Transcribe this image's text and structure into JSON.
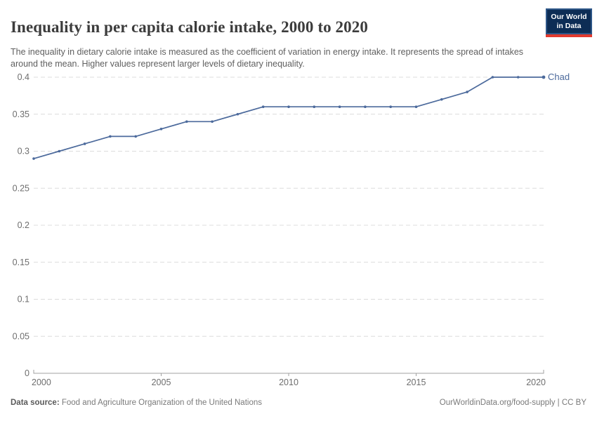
{
  "header": {
    "title": "Inequality in per capita calorie intake, 2000 to 2020",
    "subtitle": "The inequality in dietary calorie intake is measured as the coefficient of variation in energy intake. It represents the spread of intakes around the mean. Higher values represent larger levels of dietary inequality.",
    "logo": {
      "line1": "Our World",
      "line2": "in Data"
    }
  },
  "chart_data": {
    "type": "line",
    "title": "Inequality in per capita calorie intake, 2000 to 2020",
    "xlabel": "",
    "ylabel": "",
    "x": [
      2000,
      2001,
      2002,
      2003,
      2004,
      2005,
      2006,
      2007,
      2008,
      2009,
      2010,
      2011,
      2012,
      2013,
      2014,
      2015,
      2016,
      2017,
      2018,
      2019,
      2020
    ],
    "series": [
      {
        "name": "Chad",
        "color": "#4c6a9c",
        "values": [
          0.29,
          0.3,
          0.31,
          0.32,
          0.32,
          0.33,
          0.34,
          0.34,
          0.35,
          0.36,
          0.36,
          0.36,
          0.36,
          0.36,
          0.36,
          0.36,
          0.37,
          0.38,
          0.4,
          0.4,
          0.4
        ]
      }
    ],
    "ylim": [
      0,
      0.4
    ],
    "yticks": [
      0,
      0.05,
      0.1,
      0.15,
      0.2,
      0.25,
      0.3,
      0.35,
      0.4
    ],
    "ytick_labels": [
      "0",
      "0.05",
      "0.1",
      "0.15",
      "0.2",
      "0.25",
      "0.3",
      "0.35",
      "0.4"
    ],
    "xticks": [
      2000,
      2005,
      2010,
      2015,
      2020
    ],
    "xtick_labels": [
      "2000",
      "2005",
      "2010",
      "2015",
      "2020"
    ],
    "grid": "horizontal-dashed",
    "legend_position": "end-of-line-label"
  },
  "footer": {
    "source_label": "Data source:",
    "source_text": " Food and Agriculture Organization of the United Nations",
    "right_text": "OurWorldinData.org/food-supply | CC BY"
  },
  "colors": {
    "line": "#4c6a9c",
    "grid": "#dcdcdc",
    "axis": "#a0a0a0",
    "tick_text": "#6e6e6e",
    "title_text": "#3c3c3c",
    "subtitle_text": "#5f5f5f",
    "footer_text": "#7a7a7a",
    "logo_bg": "#0d2d55",
    "logo_border": "#2e5688",
    "logo_red": "#e23a2e"
  }
}
